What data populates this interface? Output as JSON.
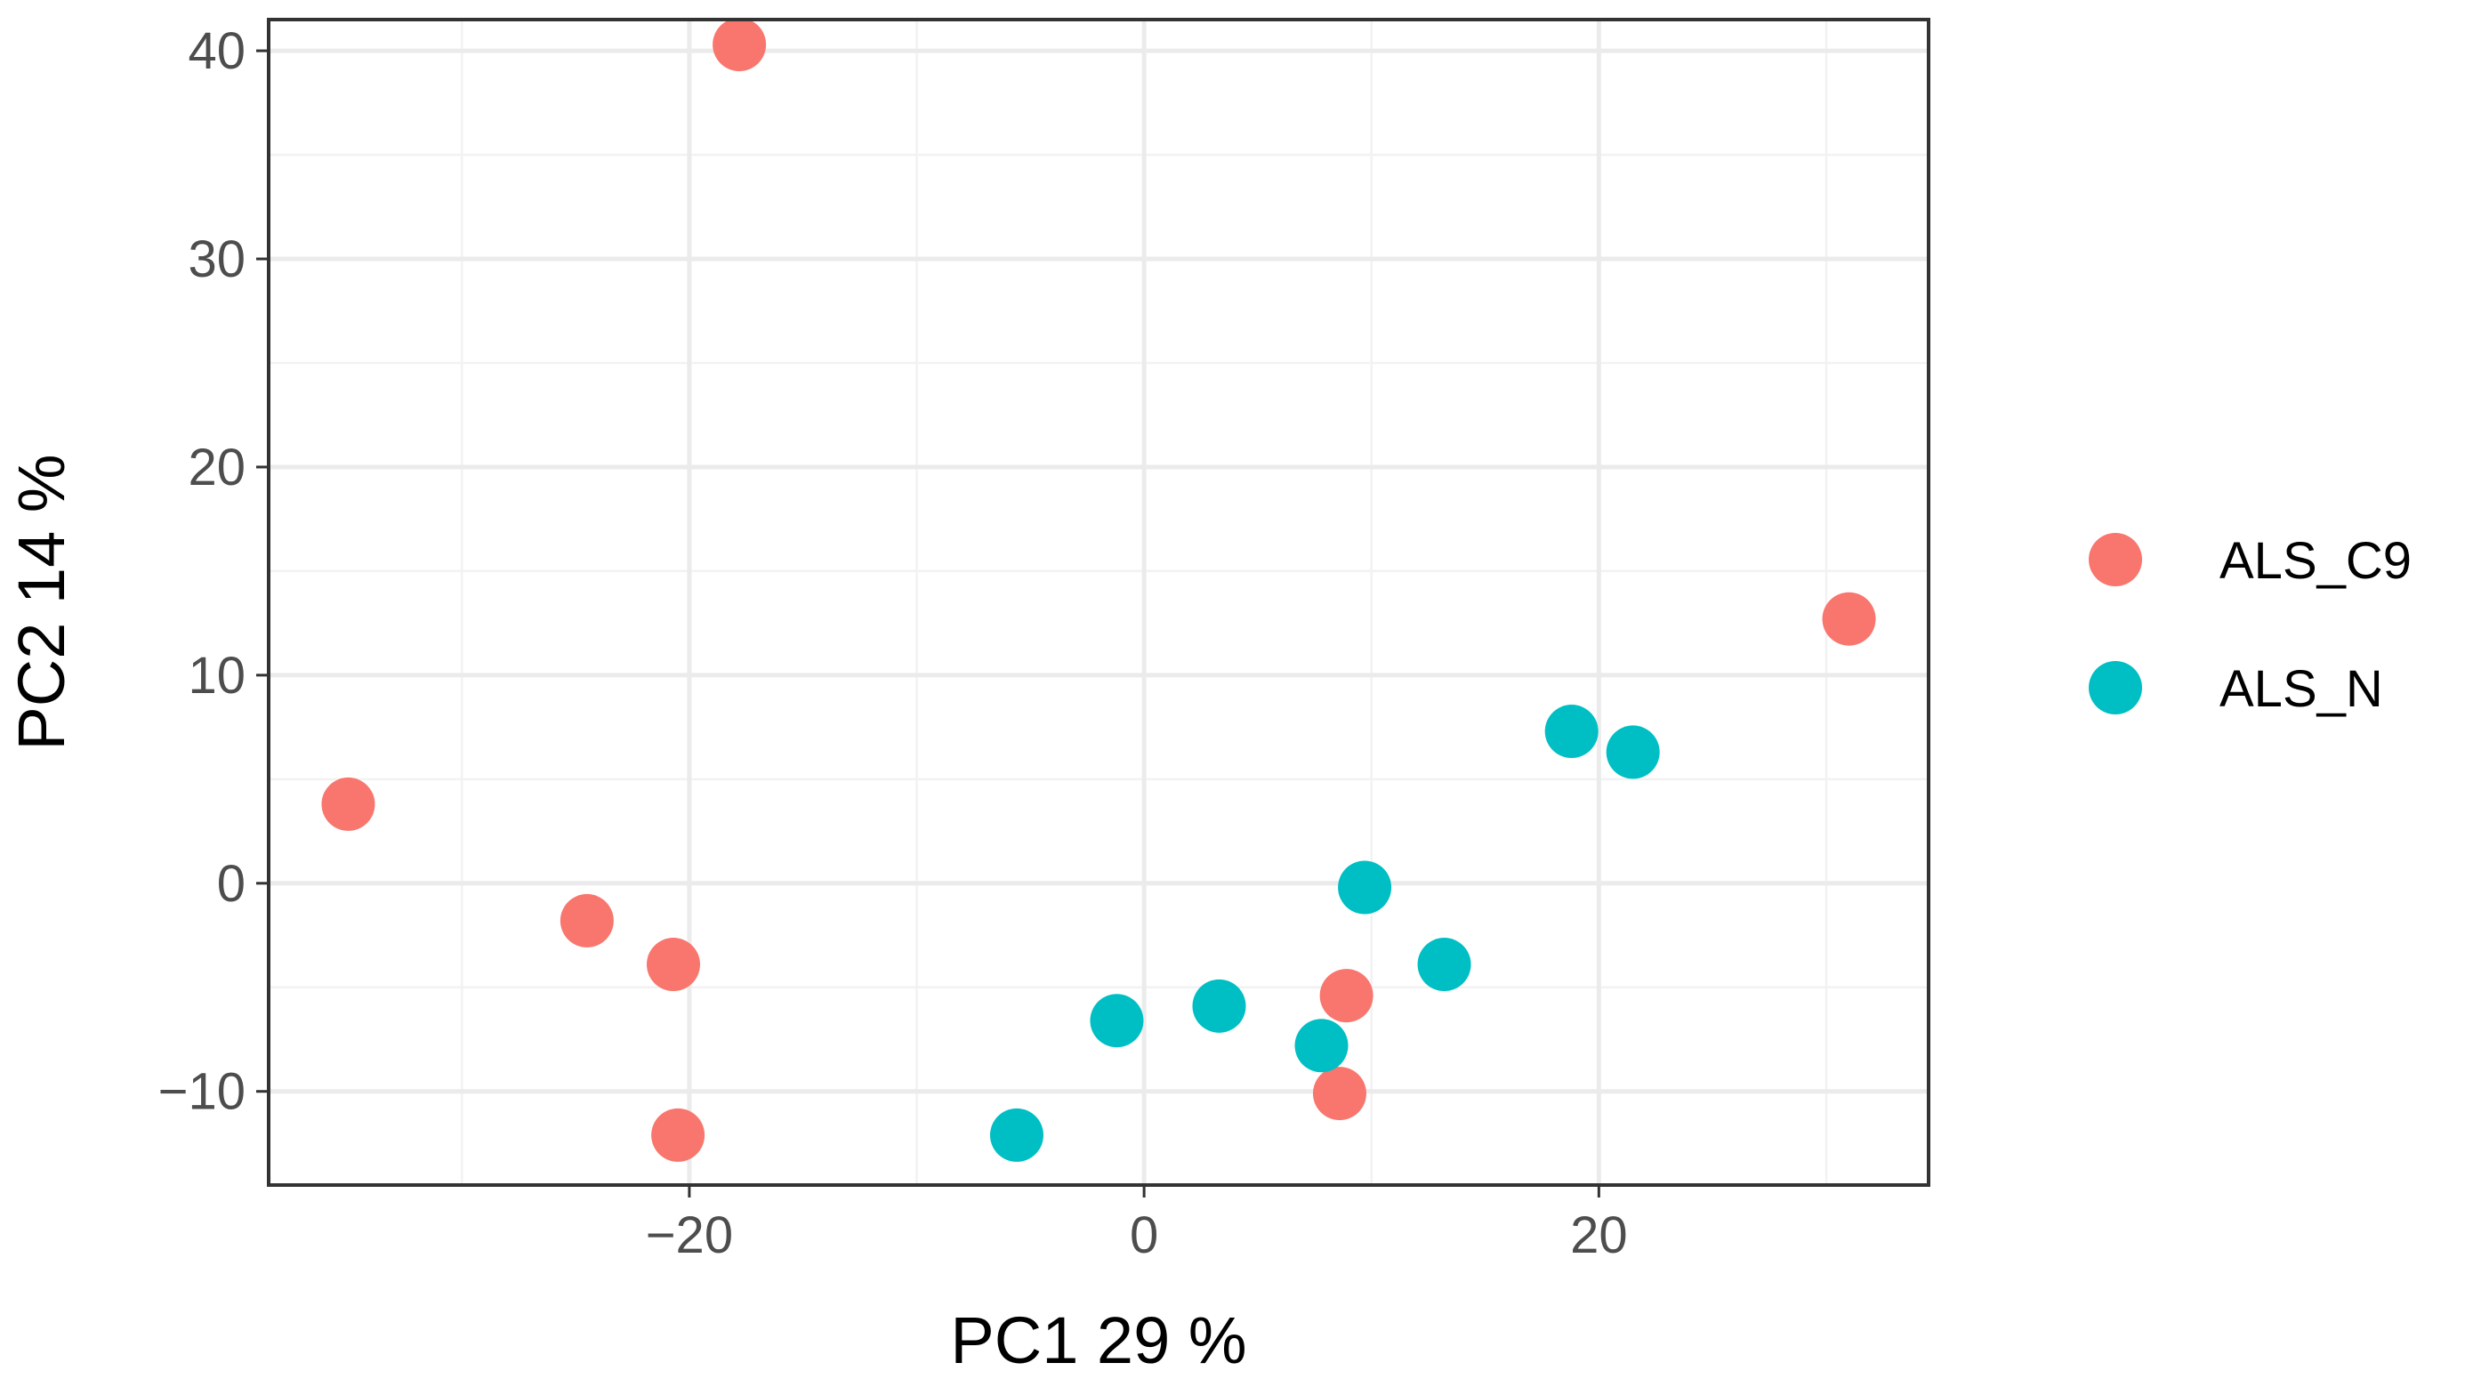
{
  "chart_data": {
    "type": "scatter",
    "xlabel": "PC1 29 %",
    "ylabel": "PC2 14 %",
    "xlim": [
      -38.5,
      34.5
    ],
    "ylim": [
      -14.5,
      41.5
    ],
    "xticks": [
      -20,
      0,
      20
    ],
    "yticks": [
      -10,
      0,
      10,
      20,
      30,
      40
    ],
    "xtick_labels": [
      "−20",
      "0",
      "20"
    ],
    "ytick_labels": [
      "−10",
      "0",
      "10",
      "20",
      "30",
      "40"
    ],
    "grid": true,
    "legend_position": "right",
    "series": [
      {
        "name": "ALS_C9",
        "color": "#F8766D",
        "points": [
          {
            "x": -17.8,
            "y": 40.3
          },
          {
            "x": -35.0,
            "y": 3.8
          },
          {
            "x": -24.5,
            "y": -1.8
          },
          {
            "x": -20.7,
            "y": -3.9
          },
          {
            "x": -20.5,
            "y": -12.1
          },
          {
            "x": 8.9,
            "y": -5.4
          },
          {
            "x": 8.6,
            "y": -10.1
          },
          {
            "x": 31.0,
            "y": 12.7
          }
        ]
      },
      {
        "name": "ALS_N",
        "color": "#00BFC4",
        "points": [
          {
            "x": -5.6,
            "y": -12.1
          },
          {
            "x": -1.2,
            "y": -6.6
          },
          {
            "x": 3.3,
            "y": -5.9
          },
          {
            "x": 7.8,
            "y": -7.8
          },
          {
            "x": 9.7,
            "y": -0.2
          },
          {
            "x": 13.2,
            "y": -3.9
          },
          {
            "x": 18.8,
            "y": 7.3
          },
          {
            "x": 21.5,
            "y": 6.3
          }
        ]
      }
    ]
  }
}
